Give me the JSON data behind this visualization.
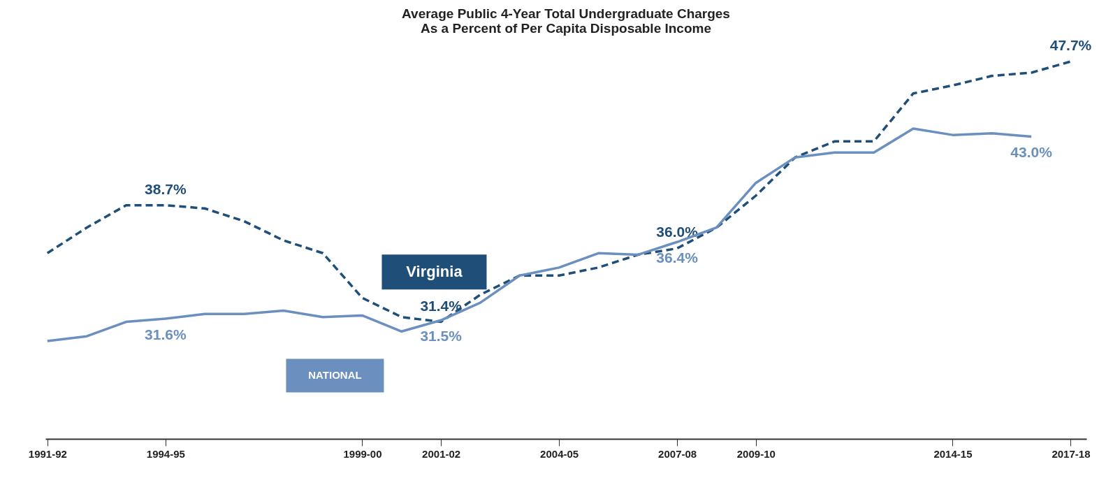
{
  "chart_data": {
    "type": "line",
    "title": "Average Public 4-Year Total Undergraduate Charges\nAs a Percent of Per Capita Disposable Income",
    "categories": [
      "1991-92",
      null,
      null,
      "1994-95",
      null,
      null,
      null,
      null,
      "1999-00",
      null,
      "2001-02",
      null,
      null,
      "2004-05",
      null,
      null,
      "2007-08",
      null,
      "2009-10",
      null,
      null,
      null,
      null,
      "2014-15",
      null,
      null,
      "2017-18"
    ],
    "series": [
      {
        "name": "Virginia",
        "color": "#1f4e79",
        "line_style": "dashed",
        "values": [
          35.7,
          37.3,
          38.7,
          38.7,
          38.5,
          37.7,
          36.5,
          35.7,
          32.9,
          31.7,
          31.4,
          33.1,
          34.3,
          34.3,
          34.8,
          35.6,
          36.0,
          37.3,
          39.3,
          41.7,
          42.7,
          42.7,
          45.7,
          46.2,
          46.8,
          47.0,
          47.7
        ],
        "value_labels": [
          null,
          null,
          null,
          "38.7%",
          null,
          null,
          null,
          null,
          null,
          null,
          "31.4%",
          null,
          null,
          null,
          null,
          null,
          "36.0%",
          null,
          null,
          null,
          null,
          null,
          null,
          null,
          null,
          null,
          "47.7%"
        ]
      },
      {
        "name": "NATIONAL",
        "color": "#6b8fbf",
        "line_style": "solid",
        "values": [
          30.2,
          30.5,
          31.4,
          31.6,
          31.9,
          31.9,
          32.1,
          31.7,
          31.8,
          30.8,
          31.5,
          32.6,
          34.3,
          34.8,
          35.7,
          35.6,
          36.4,
          37.3,
          40.1,
          41.7,
          42.0,
          42.0,
          43.5,
          43.1,
          43.2,
          43.0,
          null
        ],
        "value_labels": [
          null,
          null,
          null,
          "31.6%",
          null,
          null,
          null,
          null,
          null,
          null,
          "31.5%",
          null,
          null,
          null,
          null,
          null,
          "36.4%",
          null,
          null,
          null,
          null,
          null,
          null,
          null,
          null,
          "43.0%",
          null
        ]
      }
    ],
    "legend": false
  }
}
